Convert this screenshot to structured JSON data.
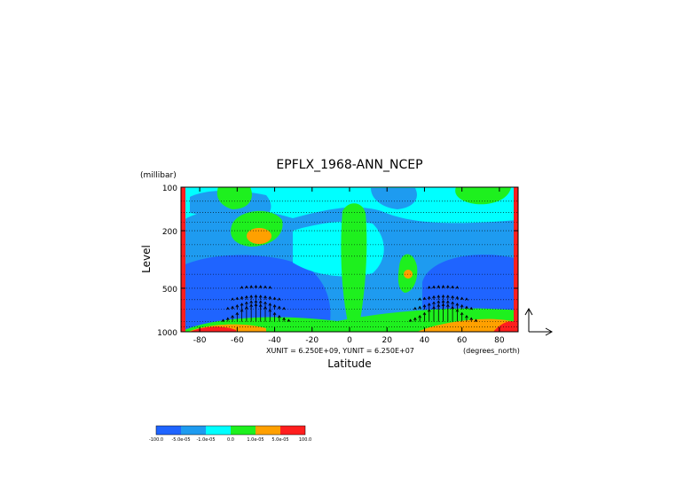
{
  "chart_data": {
    "type": "heatmap",
    "title": "EPFLX_1968-ANN_NCEP",
    "ylabel": "Level",
    "yunit": "(millibar)",
    "xlabel": "Latitude",
    "xunit": "(degrees_north)",
    "vector_scale": "XUNIT = 6.250E+09, YUNIT = 6.250E+07",
    "x_ticks": [
      "-80",
      "-60",
      "-40",
      "-20",
      "0",
      "20",
      "40",
      "60",
      "80"
    ],
    "x_tick_values": [
      -80,
      -60,
      -40,
      -20,
      0,
      20,
      40,
      60,
      80
    ],
    "y_ticks": [
      "100",
      "200",
      "500",
      "1000"
    ],
    "y_tick_values": [
      100,
      200,
      500,
      1000
    ],
    "xlim": [
      -90,
      90
    ],
    "ylim": [
      1000,
      100
    ],
    "y_scale": "log",
    "legend": {
      "placement": "bottom-left",
      "colors": [
        "#1f64ff",
        "#1e9bf0",
        "#00ffff",
        "#1ef01e",
        "#ffa000",
        "#ff1e1e"
      ],
      "labels": [
        "-100.0",
        "-5.0e-05",
        "-1.0e-05",
        "0.0",
        "1.0e-05",
        "5.0e-05",
        "100.0"
      ]
    }
  }
}
